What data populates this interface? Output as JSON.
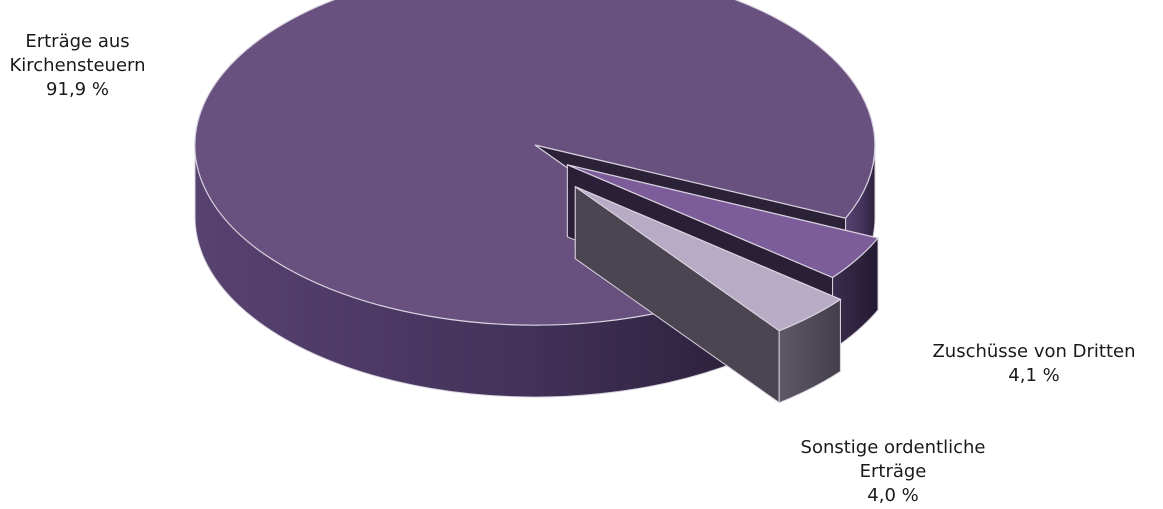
{
  "chart_data": {
    "type": "pie",
    "style": "3d-exploded",
    "title": "",
    "slices": [
      {
        "label_lines": [
          "Erträge aus",
          "Kirchensteuern"
        ],
        "percent_label": "91,9 %",
        "value": 91.9,
        "color": "#68507f"
      },
      {
        "label_lines": [
          "Zuschüsse von Dritten"
        ],
        "percent_label": "4,1 %",
        "value": 4.1,
        "color": "#7c5d9a"
      },
      {
        "label_lines": [
          "Sonstige ordentliche",
          "Erträge"
        ],
        "percent_label": "4,0 %",
        "value": 4.0,
        "color": "#b7abc6"
      }
    ]
  }
}
